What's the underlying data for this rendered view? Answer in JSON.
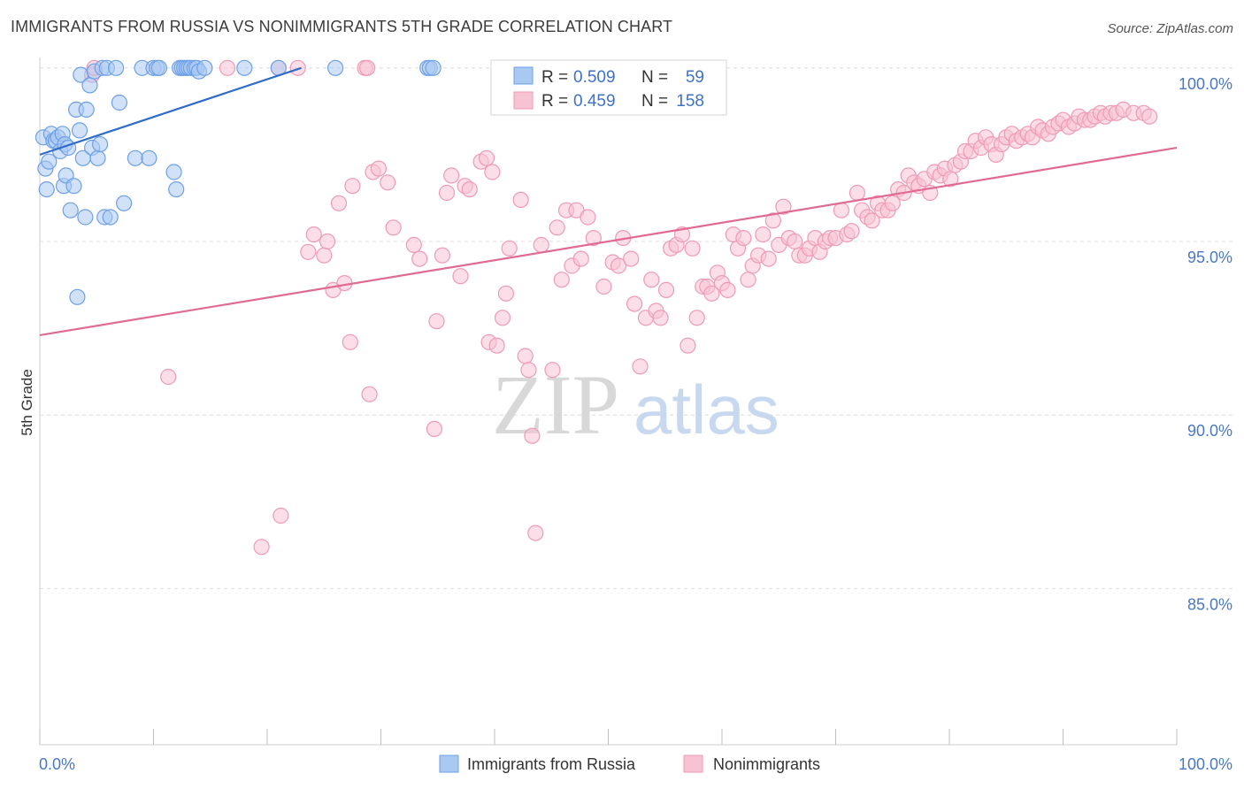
{
  "title": "IMMIGRANTS FROM RUSSIA VS NONIMMIGRANTS 5TH GRADE CORRELATION CHART",
  "source": "Source: ZipAtlas.com",
  "watermark": {
    "zip": "ZIP",
    "atlas": "atlas"
  },
  "chart_data": {
    "type": "scatter",
    "xlabel": "",
    "ylabel": "5th Grade",
    "xlim": [
      0,
      100
    ],
    "ylim": [
      80.5,
      100.3
    ],
    "x_tick_labels": [
      "0.0%",
      "100.0%"
    ],
    "y_ticks": [
      {
        "value": 100,
        "label": "100.0%"
      },
      {
        "value": 95,
        "label": "95.0%"
      },
      {
        "value": 90,
        "label": "90.0%"
      },
      {
        "value": 85,
        "label": "85.0%"
      }
    ],
    "grid": "dashed horizontal",
    "legend_position": "bottom-center",
    "stats": [
      {
        "r_label": "R =",
        "r_value": "0.509",
        "n_label": "N =",
        "n_value": "59"
      },
      {
        "r_label": "R =",
        "r_value": "0.459",
        "n_label": "N =",
        "n_value": "158"
      }
    ],
    "series": [
      {
        "name": "Immigrants from Russia",
        "color": "#6ea0e6",
        "fill": "#a9c8f2",
        "line_color": "#2f6cc9",
        "trend": {
          "x": [
            0,
            23
          ],
          "y": [
            97.5,
            100.0
          ]
        },
        "points": [
          [
            0.3,
            98.0
          ],
          [
            0.5,
            97.1
          ],
          [
            0.6,
            96.5
          ],
          [
            0.8,
            97.3
          ],
          [
            1.0,
            98.1
          ],
          [
            1.2,
            97.9
          ],
          [
            1.4,
            97.9
          ],
          [
            1.6,
            98.0
          ],
          [
            1.8,
            97.6
          ],
          [
            2.0,
            98.1
          ],
          [
            2.1,
            96.6
          ],
          [
            2.2,
            97.8
          ],
          [
            2.3,
            96.9
          ],
          [
            2.5,
            97.7
          ],
          [
            2.7,
            95.9
          ],
          [
            3.0,
            96.6
          ],
          [
            3.2,
            98.8
          ],
          [
            3.3,
            93.4
          ],
          [
            3.5,
            98.2
          ],
          [
            3.6,
            99.8
          ],
          [
            3.8,
            97.4
          ],
          [
            4.0,
            95.7
          ],
          [
            4.1,
            98.8
          ],
          [
            4.4,
            99.5
          ],
          [
            4.6,
            97.7
          ],
          [
            4.8,
            99.9
          ],
          [
            5.1,
            97.4
          ],
          [
            5.3,
            97.8
          ],
          [
            5.5,
            100.0
          ],
          [
            5.7,
            95.7
          ],
          [
            5.9,
            100.0
          ],
          [
            6.2,
            95.7
          ],
          [
            6.7,
            100.0
          ],
          [
            7.0,
            99.0
          ],
          [
            7.4,
            96.1
          ],
          [
            8.4,
            97.4
          ],
          [
            9.0,
            100.0
          ],
          [
            9.6,
            97.4
          ],
          [
            10.0,
            100.0
          ],
          [
            10.3,
            100.0
          ],
          [
            10.5,
            100.0
          ],
          [
            11.8,
            97.0
          ],
          [
            12.0,
            96.5
          ],
          [
            12.3,
            100.0
          ],
          [
            12.5,
            100.0
          ],
          [
            12.7,
            100.0
          ],
          [
            12.9,
            100.0
          ],
          [
            13.1,
            100.0
          ],
          [
            13.3,
            100.0
          ],
          [
            13.6,
            100.0
          ],
          [
            13.8,
            100.0
          ],
          [
            14.0,
            99.9
          ],
          [
            14.5,
            100.0
          ],
          [
            18.0,
            100.0
          ],
          [
            21.0,
            100.0
          ],
          [
            26.0,
            100.0
          ],
          [
            34.1,
            100.0
          ],
          [
            34.3,
            100.0
          ],
          [
            34.6,
            100.0
          ]
        ]
      },
      {
        "name": "Nonimmigrants",
        "color": "#ef9ab5",
        "fill": "#f7c3d3",
        "line_color": "#e06b92",
        "trend": {
          "x": [
            0,
            100
          ],
          "y": [
            92.3,
            97.7
          ]
        },
        "points": [
          [
            4.6,
            99.8
          ],
          [
            4.8,
            100.0
          ],
          [
            11.3,
            91.1
          ],
          [
            16.5,
            100.0
          ],
          [
            19.5,
            86.2
          ],
          [
            21.0,
            100.0
          ],
          [
            21.2,
            87.1
          ],
          [
            22.7,
            100.0
          ],
          [
            23.6,
            94.7
          ],
          [
            24.1,
            95.2
          ],
          [
            25.0,
            94.6
          ],
          [
            25.3,
            95.0
          ],
          [
            25.8,
            93.6
          ],
          [
            26.3,
            96.1
          ],
          [
            26.8,
            93.8
          ],
          [
            27.3,
            92.1
          ],
          [
            27.5,
            96.6
          ],
          [
            28.6,
            100.0
          ],
          [
            28.8,
            100.0
          ],
          [
            29.0,
            90.6
          ],
          [
            29.3,
            97.0
          ],
          [
            29.8,
            97.1
          ],
          [
            30.6,
            96.7
          ],
          [
            31.1,
            95.4
          ],
          [
            32.9,
            94.9
          ],
          [
            33.4,
            94.5
          ],
          [
            34.7,
            89.6
          ],
          [
            34.9,
            92.7
          ],
          [
            35.4,
            94.6
          ],
          [
            35.8,
            96.4
          ],
          [
            36.2,
            96.9
          ],
          [
            37.0,
            94.0
          ],
          [
            37.4,
            96.6
          ],
          [
            37.8,
            96.5
          ],
          [
            38.8,
            97.3
          ],
          [
            39.3,
            97.4
          ],
          [
            39.5,
            92.1
          ],
          [
            39.8,
            97.0
          ],
          [
            40.2,
            92.0
          ],
          [
            40.7,
            92.8
          ],
          [
            41.0,
            93.5
          ],
          [
            41.3,
            94.8
          ],
          [
            42.3,
            96.2
          ],
          [
            42.7,
            91.7
          ],
          [
            43.0,
            91.3
          ],
          [
            43.3,
            89.4
          ],
          [
            43.6,
            86.6
          ],
          [
            44.1,
            94.9
          ],
          [
            45.1,
            91.3
          ],
          [
            45.5,
            95.4
          ],
          [
            45.9,
            93.9
          ],
          [
            46.3,
            95.9
          ],
          [
            46.8,
            94.3
          ],
          [
            47.2,
            95.9
          ],
          [
            47.6,
            94.5
          ],
          [
            48.2,
            95.7
          ],
          [
            48.7,
            95.1
          ],
          [
            49.6,
            93.7
          ],
          [
            50.4,
            94.4
          ],
          [
            50.9,
            94.3
          ],
          [
            51.3,
            95.1
          ],
          [
            52.0,
            94.5
          ],
          [
            52.3,
            93.2
          ],
          [
            52.8,
            91.4
          ],
          [
            53.3,
            92.8
          ],
          [
            53.8,
            93.9
          ],
          [
            54.2,
            93.0
          ],
          [
            54.6,
            92.8
          ],
          [
            55.1,
            93.6
          ],
          [
            55.5,
            94.8
          ],
          [
            56.0,
            94.9
          ],
          [
            56.5,
            95.2
          ],
          [
            57.0,
            92.0
          ],
          [
            57.4,
            94.8
          ],
          [
            57.8,
            92.8
          ],
          [
            58.3,
            93.7
          ],
          [
            58.7,
            93.7
          ],
          [
            59.1,
            93.5
          ],
          [
            59.6,
            94.1
          ],
          [
            60.0,
            93.8
          ],
          [
            60.5,
            93.6
          ],
          [
            61.0,
            95.2
          ],
          [
            61.4,
            94.8
          ],
          [
            61.9,
            95.1
          ],
          [
            62.3,
            93.9
          ],
          [
            62.7,
            94.3
          ],
          [
            63.2,
            94.6
          ],
          [
            63.6,
            95.2
          ],
          [
            64.1,
            94.5
          ],
          [
            64.5,
            95.6
          ],
          [
            65.0,
            94.9
          ],
          [
            65.4,
            96.0
          ],
          [
            65.9,
            95.1
          ],
          [
            66.4,
            95.0
          ],
          [
            66.8,
            94.6
          ],
          [
            67.3,
            94.6
          ],
          [
            67.7,
            94.8
          ],
          [
            68.2,
            95.1
          ],
          [
            68.6,
            94.7
          ],
          [
            69.1,
            95.0
          ],
          [
            69.5,
            95.1
          ],
          [
            70.0,
            95.1
          ],
          [
            70.5,
            95.9
          ],
          [
            71.0,
            95.2
          ],
          [
            71.4,
            95.3
          ],
          [
            71.9,
            96.4
          ],
          [
            72.3,
            95.9
          ],
          [
            72.8,
            95.7
          ],
          [
            73.2,
            95.6
          ],
          [
            73.7,
            96.1
          ],
          [
            74.1,
            95.9
          ],
          [
            74.6,
            95.9
          ],
          [
            75.0,
            96.1
          ],
          [
            75.5,
            96.5
          ],
          [
            76.0,
            96.4
          ],
          [
            76.4,
            96.9
          ],
          [
            76.9,
            96.7
          ],
          [
            77.3,
            96.6
          ],
          [
            77.8,
            96.8
          ],
          [
            78.3,
            96.4
          ],
          [
            78.7,
            97.0
          ],
          [
            79.2,
            96.9
          ],
          [
            79.6,
            97.1
          ],
          [
            80.1,
            96.8
          ],
          [
            80.5,
            97.2
          ],
          [
            81.0,
            97.3
          ],
          [
            81.4,
            97.6
          ],
          [
            81.9,
            97.6
          ],
          [
            82.3,
            97.9
          ],
          [
            82.8,
            97.7
          ],
          [
            83.2,
            98.0
          ],
          [
            83.7,
            97.8
          ],
          [
            84.1,
            97.5
          ],
          [
            84.6,
            97.8
          ],
          [
            85.0,
            98.0
          ],
          [
            85.5,
            98.1
          ],
          [
            85.9,
            97.9
          ],
          [
            86.4,
            98.0
          ],
          [
            86.9,
            98.1
          ],
          [
            87.3,
            98.0
          ],
          [
            87.8,
            98.3
          ],
          [
            88.2,
            98.2
          ],
          [
            88.7,
            98.1
          ],
          [
            89.1,
            98.3
          ],
          [
            89.6,
            98.4
          ],
          [
            90.0,
            98.5
          ],
          [
            90.5,
            98.3
          ],
          [
            91.0,
            98.4
          ],
          [
            91.4,
            98.6
          ],
          [
            91.9,
            98.5
          ],
          [
            92.4,
            98.5
          ],
          [
            92.8,
            98.6
          ],
          [
            93.3,
            98.7
          ],
          [
            93.7,
            98.6
          ],
          [
            94.2,
            98.7
          ],
          [
            94.7,
            98.7
          ],
          [
            95.3,
            98.8
          ],
          [
            96.2,
            98.7
          ],
          [
            97.1,
            98.7
          ],
          [
            97.6,
            98.6
          ]
        ]
      }
    ]
  }
}
